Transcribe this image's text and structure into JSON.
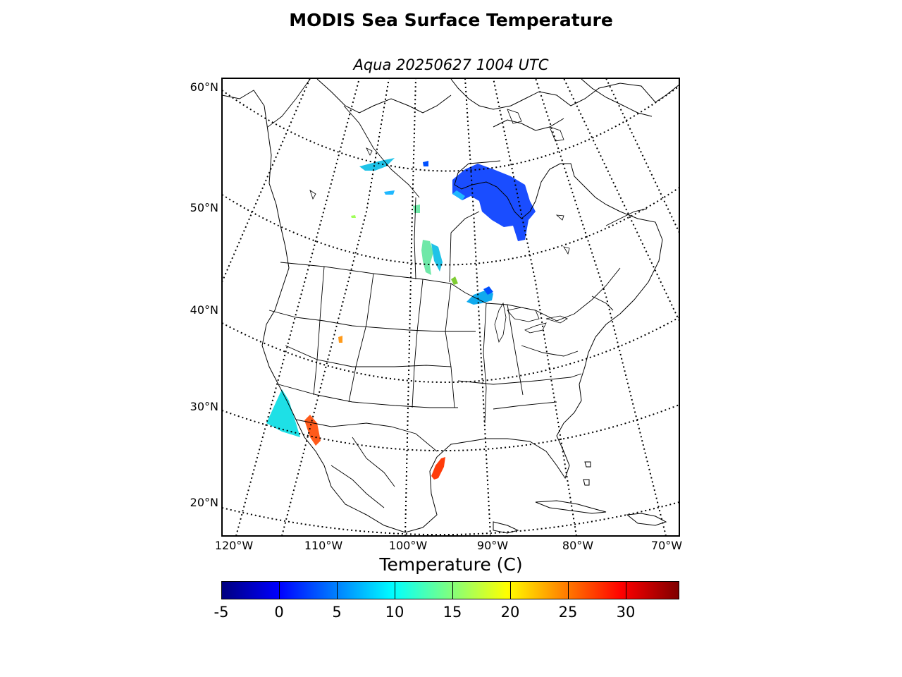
{
  "title": "MODIS Sea Surface Temperature",
  "subtitle": "Aqua 20250627 1004 UTC",
  "map": {
    "lat_labels": [
      "60°N",
      "50°N",
      "40°N",
      "30°N",
      "20°N"
    ],
    "lon_labels": [
      "120°W",
      "110°W",
      "100°W",
      "90°W",
      "80°W",
      "70°W"
    ]
  },
  "colorbar": {
    "title": "Temperature (C)",
    "colormap": "jet",
    "min": -5,
    "max": 34.6,
    "tick_labels": [
      "-5",
      "0",
      "5",
      "10",
      "15",
      "20",
      "25",
      "30"
    ],
    "tick_values": [
      -5,
      0,
      5,
      10,
      15,
      20,
      25,
      30
    ]
  },
  "colors": {
    "cold": "#0000ff",
    "mid": "#00ffff",
    "warm": "#ff0000"
  }
}
